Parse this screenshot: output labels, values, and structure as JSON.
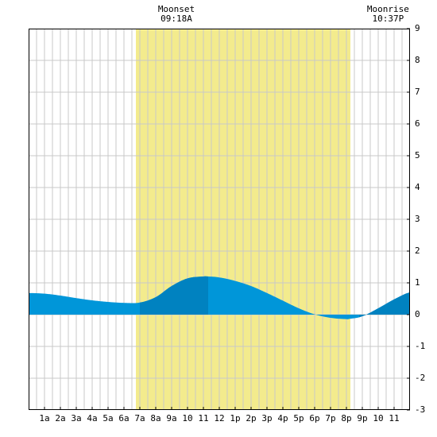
{
  "chart_data": {
    "type": "area",
    "title": "",
    "xlabel": "",
    "ylabel": "",
    "xlim": [
      0,
      24
    ],
    "ylim": [
      -3,
      9
    ],
    "grid": true,
    "x_tick_labels": [
      "1a",
      "2a",
      "3a",
      "4a",
      "5a",
      "6a",
      "7a",
      "8a",
      "9a",
      "10",
      "11",
      "12",
      "1p",
      "2p",
      "3p",
      "4p",
      "5p",
      "6p",
      "7p",
      "8p",
      "9p",
      "10",
      "11"
    ],
    "y_tick_labels": [
      "9",
      "8",
      "7",
      "6",
      "5",
      "4",
      "3",
      "2",
      "1",
      "0",
      "-1",
      "-2",
      "-3"
    ],
    "daylight_band": {
      "start": 6.75,
      "end": 20.25,
      "color": "#f3eb8d"
    },
    "colors": {
      "fill": "#0096d9",
      "fill_dark": "#0082c0",
      "grid": "#c8c8c8",
      "axis": "#000000"
    },
    "dark_segments": [
      [
        7.0,
        11.3
      ],
      [
        20.8,
        24.0
      ]
    ],
    "annotations": [
      {
        "label": "Moonset",
        "time": "09:18A",
        "x": 9.3
      },
      {
        "label": "Moonrise",
        "time": "10:37P",
        "x": 22.62
      }
    ],
    "series": [
      {
        "x": [
          0,
          1,
          2,
          3,
          4,
          5,
          6,
          7,
          8,
          9,
          10,
          11,
          11.3,
          12,
          13,
          14,
          15,
          16,
          17,
          18,
          19,
          20,
          20.2,
          21,
          22,
          23,
          24
        ],
        "values": [
          0.68,
          0.66,
          0.6,
          0.52,
          0.45,
          0.4,
          0.37,
          0.38,
          0.55,
          0.9,
          1.14,
          1.2,
          1.2,
          1.17,
          1.06,
          0.9,
          0.68,
          0.44,
          0.2,
          0.01,
          -0.1,
          -0.14,
          -0.13,
          -0.05,
          0.2,
          0.48,
          0.7
        ]
      }
    ]
  }
}
